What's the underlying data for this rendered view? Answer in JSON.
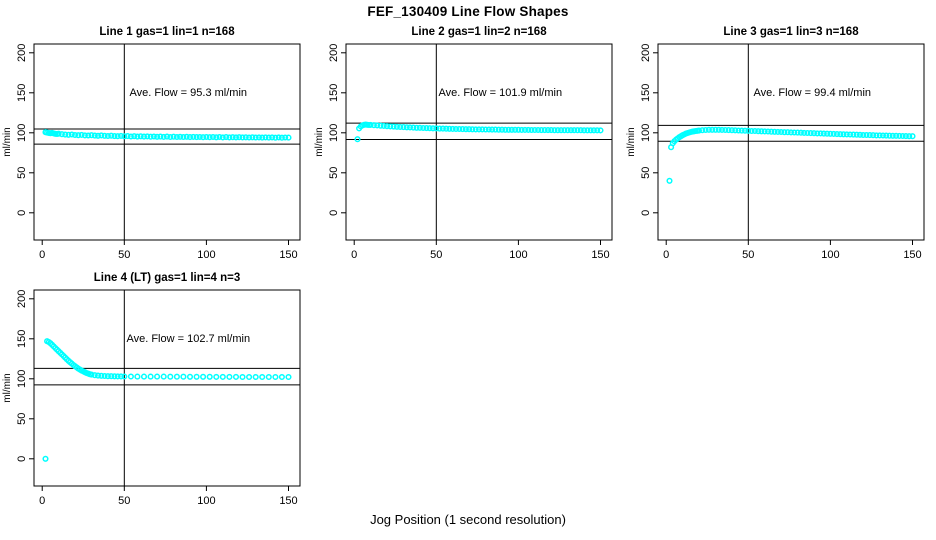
{
  "figure": {
    "title": "FEF_130409  Line Flow Shapes",
    "xlabel": "Jog Position (1 second resolution)",
    "background": "#ffffff",
    "point_color": "#00ffff",
    "line_color": "#000000",
    "marker": "open-circle"
  },
  "chart_data": [
    {
      "type": "scatter",
      "title": "Line 1 gas=1 lin=1 n=168",
      "annotation": "Ave. Flow =  95.3  ml/min",
      "ave_flow": 95.3,
      "ylabel": "ml/min",
      "xticks": [
        0,
        50,
        100,
        150
      ],
      "yticks": [
        0,
        50,
        100,
        150,
        200
      ],
      "xlim": [
        -5,
        157
      ],
      "ylim": [
        -34,
        211
      ],
      "grid": {
        "row": 0,
        "col": 0
      },
      "vline_x": 50,
      "hlines": [
        104.8,
        85.8
      ],
      "points": [
        [
          2,
          100.8
        ],
        [
          3,
          100.2
        ],
        [
          4,
          99.8
        ],
        [
          5,
          99.5
        ],
        [
          6,
          99.9
        ],
        [
          7,
          99.2
        ],
        [
          8,
          98.8
        ],
        [
          9,
          98.5
        ],
        [
          10,
          98.9
        ],
        [
          12,
          98.2
        ],
        [
          14,
          97.8
        ],
        [
          16,
          97.5
        ],
        [
          18,
          97.9
        ],
        [
          20,
          97.3
        ],
        [
          22,
          97.0
        ],
        [
          24,
          97.4
        ],
        [
          26,
          96.8
        ],
        [
          28,
          96.6
        ],
        [
          30,
          97.0
        ],
        [
          32,
          96.5
        ],
        [
          34,
          96.3
        ],
        [
          36,
          96.7
        ],
        [
          38,
          96.2
        ],
        [
          40,
          96.0
        ],
        [
          42,
          96.4
        ],
        [
          44,
          95.9
        ],
        [
          46,
          95.7
        ],
        [
          48,
          96.1
        ],
        [
          50,
          95.6
        ],
        [
          52,
          95.9
        ],
        [
          54,
          95.4
        ],
        [
          56,
          95.7
        ],
        [
          58,
          95.3
        ],
        [
          60,
          95.6
        ],
        [
          62,
          95.2
        ],
        [
          64,
          95.5
        ],
        [
          66,
          95.1
        ],
        [
          68,
          95.4
        ],
        [
          70,
          95.0
        ],
        [
          72,
          95.3
        ],
        [
          74,
          94.9
        ],
        [
          76,
          95.2
        ],
        [
          78,
          94.8
        ],
        [
          80,
          95.1
        ],
        [
          82,
          94.8
        ],
        [
          84,
          95.0
        ],
        [
          86,
          94.7
        ],
        [
          88,
          95.0
        ],
        [
          90,
          94.6
        ],
        [
          92,
          94.9
        ],
        [
          94,
          94.6
        ],
        [
          96,
          94.8
        ],
        [
          98,
          94.5
        ],
        [
          100,
          94.8
        ],
        [
          102,
          94.5
        ],
        [
          104,
          94.7
        ],
        [
          106,
          94.4
        ],
        [
          108,
          94.7
        ],
        [
          110,
          94.3
        ],
        [
          112,
          94.6
        ],
        [
          114,
          94.3
        ],
        [
          116,
          94.5
        ],
        [
          118,
          94.2
        ],
        [
          120,
          94.5
        ],
        [
          122,
          94.2
        ],
        [
          124,
          94.4
        ],
        [
          126,
          94.1
        ],
        [
          128,
          94.4
        ],
        [
          130,
          94.1
        ],
        [
          132,
          94.3
        ],
        [
          134,
          94.0
        ],
        [
          136,
          94.3
        ],
        [
          138,
          94.0
        ],
        [
          140,
          94.2
        ],
        [
          142,
          93.9
        ],
        [
          144,
          94.2
        ],
        [
          146,
          93.9
        ],
        [
          148,
          94.1
        ],
        [
          150,
          94.0
        ]
      ]
    },
    {
      "type": "scatter",
      "title": "Line 2 gas=1 lin=2 n=168",
      "annotation": "Ave. Flow =  101.9  ml/min",
      "ave_flow": 101.9,
      "ylabel": "ml/min",
      "xticks": [
        0,
        50,
        100,
        150
      ],
      "yticks": [
        0,
        50,
        100,
        150,
        200
      ],
      "xlim": [
        -5,
        157
      ],
      "ylim": [
        -34,
        211
      ],
      "grid": {
        "row": 0,
        "col": 1
      },
      "vline_x": 50,
      "hlines": [
        112.1,
        91.7
      ],
      "points": [
        [
          2,
          92.0
        ],
        [
          3,
          105.5
        ],
        [
          4,
          108.0
        ],
        [
          5,
          109.3
        ],
        [
          6,
          110.0
        ],
        [
          7,
          110.2
        ],
        [
          8,
          110.0
        ],
        [
          9,
          109.8
        ],
        [
          10,
          109.9
        ],
        [
          12,
          109.5
        ],
        [
          14,
          109.2
        ],
        [
          16,
          108.9
        ],
        [
          18,
          108.6
        ],
        [
          20,
          108.3
        ],
        [
          22,
          108.0
        ],
        [
          24,
          107.8
        ],
        [
          26,
          107.5
        ],
        [
          28,
          107.3
        ],
        [
          30,
          107.1
        ],
        [
          32,
          106.9
        ],
        [
          34,
          106.7
        ],
        [
          36,
          106.5
        ],
        [
          38,
          106.3
        ],
        [
          40,
          106.2
        ],
        [
          42,
          106.0
        ],
        [
          44,
          105.9
        ],
        [
          46,
          105.7
        ],
        [
          48,
          105.6
        ],
        [
          50,
          105.5
        ],
        [
          52,
          105.3
        ],
        [
          54,
          105.2
        ],
        [
          56,
          105.1
        ],
        [
          58,
          105.0
        ],
        [
          60,
          104.9
        ],
        [
          62,
          104.8
        ],
        [
          64,
          104.7
        ],
        [
          66,
          104.6
        ],
        [
          68,
          104.5
        ],
        [
          70,
          104.5
        ],
        [
          72,
          104.4
        ],
        [
          74,
          104.3
        ],
        [
          76,
          104.3
        ],
        [
          78,
          104.2
        ],
        [
          80,
          104.1
        ],
        [
          82,
          104.1
        ],
        [
          84,
          104.0
        ],
        [
          86,
          104.0
        ],
        [
          88,
          103.9
        ],
        [
          90,
          103.9
        ],
        [
          92,
          103.8
        ],
        [
          94,
          103.8
        ],
        [
          96,
          103.7
        ],
        [
          98,
          103.7
        ],
        [
          100,
          103.7
        ],
        [
          102,
          103.6
        ],
        [
          104,
          103.6
        ],
        [
          106,
          103.6
        ],
        [
          108,
          103.5
        ],
        [
          110,
          103.5
        ],
        [
          112,
          103.5
        ],
        [
          114,
          103.4
        ],
        [
          116,
          103.4
        ],
        [
          118,
          103.4
        ],
        [
          120,
          103.4
        ],
        [
          122,
          103.3
        ],
        [
          124,
          103.3
        ],
        [
          126,
          103.3
        ],
        [
          128,
          103.3
        ],
        [
          130,
          103.2
        ],
        [
          132,
          103.2
        ],
        [
          134,
          103.2
        ],
        [
          136,
          103.2
        ],
        [
          138,
          103.2
        ],
        [
          140,
          103.1
        ],
        [
          142,
          103.1
        ],
        [
          144,
          103.1
        ],
        [
          146,
          103.1
        ],
        [
          148,
          103.1
        ],
        [
          150,
          103.0
        ]
      ]
    },
    {
      "type": "scatter",
      "title": "Line 3 gas=1 lin=3 n=168",
      "annotation": "Ave. Flow =  99.4  ml/min",
      "ave_flow": 99.4,
      "ylabel": "ml/min",
      "xticks": [
        0,
        50,
        100,
        150
      ],
      "yticks": [
        0,
        50,
        100,
        150,
        200
      ],
      "xlim": [
        -5,
        157
      ],
      "ylim": [
        -34,
        211
      ],
      "grid": {
        "row": 0,
        "col": 2
      },
      "vline_x": 50,
      "hlines": [
        109.3,
        89.5
      ],
      "points": [
        [
          2,
          40.0
        ],
        [
          3,
          82.0
        ],
        [
          4,
          87.0
        ],
        [
          5,
          89.5
        ],
        [
          6,
          91.5
        ],
        [
          7,
          93.0
        ],
        [
          8,
          94.5
        ],
        [
          9,
          95.8
        ],
        [
          10,
          97.0
        ],
        [
          11,
          98.0
        ],
        [
          12,
          99.0
        ],
        [
          13,
          99.8
        ],
        [
          14,
          100.4
        ],
        [
          15,
          101.0
        ],
        [
          16,
          101.5
        ],
        [
          17,
          101.9
        ],
        [
          18,
          102.2
        ],
        [
          19,
          102.5
        ],
        [
          20,
          102.8
        ],
        [
          22,
          103.2
        ],
        [
          24,
          103.5
        ],
        [
          26,
          103.7
        ],
        [
          28,
          103.8
        ],
        [
          30,
          103.8
        ],
        [
          32,
          103.7
        ],
        [
          34,
          103.6
        ],
        [
          36,
          103.5
        ],
        [
          38,
          103.4
        ],
        [
          40,
          103.2
        ],
        [
          42,
          103.1
        ],
        [
          44,
          102.9
        ],
        [
          46,
          102.8
        ],
        [
          48,
          102.6
        ],
        [
          50,
          102.5
        ],
        [
          52,
          102.3
        ],
        [
          54,
          102.2
        ],
        [
          56,
          102.0
        ],
        [
          58,
          101.9
        ],
        [
          60,
          101.7
        ],
        [
          62,
          101.6
        ],
        [
          64,
          101.4
        ],
        [
          66,
          101.3
        ],
        [
          68,
          101.1
        ],
        [
          70,
          101.0
        ],
        [
          72,
          100.8
        ],
        [
          74,
          100.7
        ],
        [
          76,
          100.5
        ],
        [
          78,
          100.4
        ],
        [
          80,
          100.2
        ],
        [
          82,
          100.1
        ],
        [
          84,
          99.9
        ],
        [
          86,
          99.8
        ],
        [
          88,
          99.6
        ],
        [
          90,
          99.5
        ],
        [
          92,
          99.3
        ],
        [
          94,
          99.2
        ],
        [
          96,
          99.0
        ],
        [
          98,
          98.9
        ],
        [
          100,
          98.7
        ],
        [
          102,
          98.6
        ],
        [
          104,
          98.4
        ],
        [
          106,
          98.3
        ],
        [
          108,
          98.1
        ],
        [
          110,
          98.0
        ],
        [
          112,
          97.9
        ],
        [
          114,
          97.7
        ],
        [
          116,
          97.6
        ],
        [
          118,
          97.5
        ],
        [
          120,
          97.3
        ],
        [
          122,
          97.2
        ],
        [
          124,
          97.1
        ],
        [
          126,
          97.0
        ],
        [
          128,
          96.8
        ],
        [
          130,
          96.7
        ],
        [
          132,
          96.6
        ],
        [
          134,
          96.5
        ],
        [
          136,
          96.4
        ],
        [
          138,
          96.3
        ],
        [
          140,
          96.2
        ],
        [
          142,
          96.1
        ],
        [
          144,
          96.0
        ],
        [
          146,
          95.9
        ],
        [
          148,
          95.8
        ],
        [
          150,
          95.7
        ]
      ]
    },
    {
      "type": "scatter",
      "title": "Line 4 (LT) gas=1 lin=4 n=3",
      "annotation": "Ave. Flow =  102.7  ml/min",
      "ave_flow": 102.7,
      "ylabel": "ml/min",
      "xticks": [
        0,
        50,
        100,
        150
      ],
      "yticks": [
        0,
        50,
        100,
        150,
        200
      ],
      "xlim": [
        -5,
        157
      ],
      "ylim": [
        -34,
        211
      ],
      "grid": {
        "row": 1,
        "col": 0
      },
      "vline_x": 50,
      "hlines": [
        113.0,
        92.4
      ],
      "points": [
        [
          2,
          0.0
        ],
        [
          3,
          147.0
        ],
        [
          4,
          146.0
        ],
        [
          5,
          144.5
        ],
        [
          6,
          142.5
        ],
        [
          7,
          140.5
        ],
        [
          8,
          138.5
        ],
        [
          9,
          136.5
        ],
        [
          10,
          134.5
        ],
        [
          11,
          132.5
        ],
        [
          12,
          130.5
        ],
        [
          13,
          128.5
        ],
        [
          14,
          126.5
        ],
        [
          15,
          124.5
        ],
        [
          16,
          122.5
        ],
        [
          17,
          120.8
        ],
        [
          18,
          119.0
        ],
        [
          19,
          117.3
        ],
        [
          20,
          115.7
        ],
        [
          21,
          114.2
        ],
        [
          22,
          112.8
        ],
        [
          23,
          111.5
        ],
        [
          24,
          110.3
        ],
        [
          25,
          109.2
        ],
        [
          26,
          108.2
        ],
        [
          27,
          107.3
        ],
        [
          28,
          106.5
        ],
        [
          29,
          105.8
        ],
        [
          30,
          105.2
        ],
        [
          32,
          104.5
        ],
        [
          34,
          104.0
        ],
        [
          36,
          103.7
        ],
        [
          38,
          103.5
        ],
        [
          40,
          103.3
        ],
        [
          42,
          103.2
        ],
        [
          44,
          103.1
        ],
        [
          46,
          103.0
        ],
        [
          48,
          103.0
        ],
        [
          50,
          102.9
        ],
        [
          54,
          102.9
        ],
        [
          58,
          102.8
        ],
        [
          62,
          102.8
        ],
        [
          66,
          102.7
        ],
        [
          70,
          102.7
        ],
        [
          74,
          102.7
        ],
        [
          78,
          102.6
        ],
        [
          82,
          102.6
        ],
        [
          86,
          102.6
        ],
        [
          90,
          102.5
        ],
        [
          94,
          102.5
        ],
        [
          98,
          102.5
        ],
        [
          102,
          102.5
        ],
        [
          106,
          102.4
        ],
        [
          110,
          102.4
        ],
        [
          114,
          102.4
        ],
        [
          118,
          102.4
        ],
        [
          122,
          102.3
        ],
        [
          126,
          102.3
        ],
        [
          130,
          102.3
        ],
        [
          134,
          102.3
        ],
        [
          138,
          102.2
        ],
        [
          142,
          102.2
        ],
        [
          146,
          102.2
        ],
        [
          150,
          102.2
        ]
      ]
    }
  ]
}
